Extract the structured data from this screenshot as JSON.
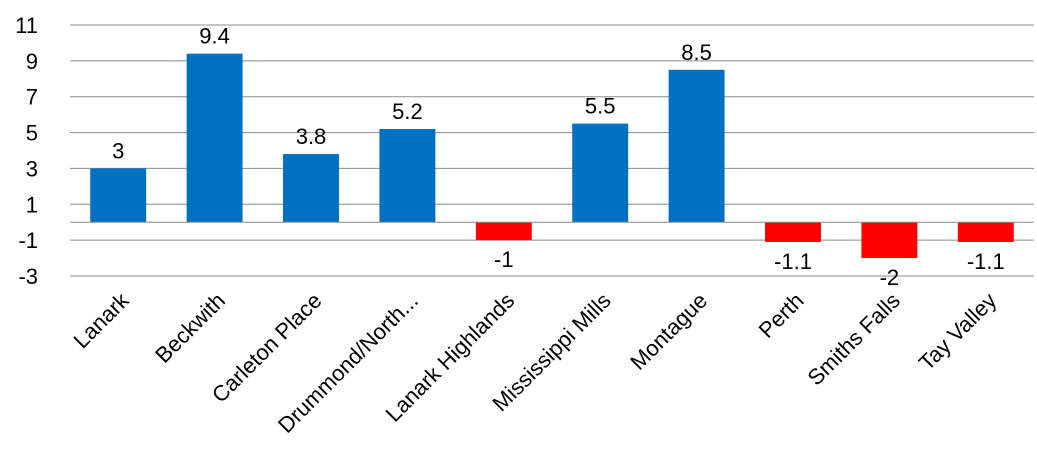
{
  "chart_data": {
    "type": "bar",
    "title": "",
    "xlabel": "",
    "ylabel": "",
    "categories": [
      "Lanark",
      "Beckwith",
      "Carleton Place",
      "Drummond/North...",
      "Lanark Highlands",
      "Mississippi Mills",
      "Montague",
      "Perth",
      "Smiths Falls",
      "Tay Valley"
    ],
    "values": [
      3,
      9.4,
      3.8,
      5.2,
      -1,
      5.5,
      8.5,
      -1.1,
      -2,
      -1.1
    ],
    "data_labels": [
      "3",
      "9.4",
      "3.8",
      "5.2",
      "-1",
      "5.5",
      "8.5",
      "-1.1",
      "-2",
      "-1.1"
    ],
    "ylim": [
      -3,
      11
    ],
    "yticks": [
      11,
      9,
      7,
      5,
      3,
      1,
      -1,
      -3
    ],
    "ytick_labels": [
      "11",
      "9",
      "7",
      "5",
      "3",
      "1",
      "-1",
      "-3"
    ],
    "grid": true,
    "legend": "none",
    "colors": {
      "positive": "#0070C0",
      "negative": "#FF0000",
      "grid": "#8C8C8C"
    }
  }
}
